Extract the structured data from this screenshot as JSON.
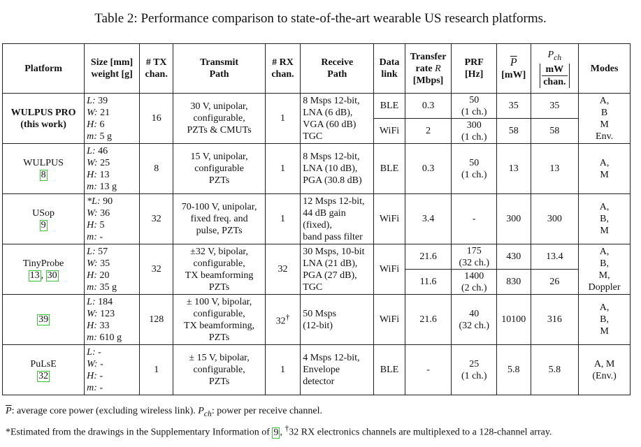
{
  "caption": "Table 2: Performance comparison to state-of-the-art wearable US research platforms.",
  "headers": {
    "platform": "Platform",
    "size_l1": "Size [mm]",
    "size_l2": "weight [g]",
    "tx_l1": "# TX",
    "tx_l2": "chan.",
    "transmit_l1": "Transmit",
    "transmit_l2": "Path",
    "rx_l1": "# RX",
    "rx_l2": "chan.",
    "receive_l1": "Receive",
    "receive_l2": "Path",
    "data_l1": "Data",
    "data_l2": "link",
    "transfer_l1": "Transfer",
    "transfer_l2": "rate",
    "transfer_var": "R",
    "transfer_l3": "[Mbps]",
    "prf_l1": "PRF",
    "prf_l2": "[Hz]",
    "p_sym": "P",
    "p_unit": "[mW]",
    "pch_sym": "P",
    "pch_sub": "ch",
    "pch_num": "mW",
    "pch_den": "chan.",
    "modes": "Modes"
  },
  "rows": {
    "wulpus_pro": {
      "name_l1": "WULPUS PRO",
      "name_l2": "(this work)",
      "size": [
        [
          "L:",
          " 39"
        ],
        [
          "W:",
          " 21"
        ],
        [
          "H:",
          " 6"
        ],
        [
          "m:",
          " 5 g"
        ]
      ],
      "tx": "16",
      "transmit": [
        "30 V, unipolar,",
        "configurable,",
        "PZTs & CMUTs"
      ],
      "rx": "1",
      "receive": [
        "8 Msps 12-bit,",
        "LNA (6 dB),",
        "VGA (60 dB)",
        "TGC"
      ],
      "sub": [
        {
          "link": "BLE",
          "rate": "0.3",
          "prf": "50",
          "prf2": "(1 ch.)",
          "p": "35",
          "pch": "35"
        },
        {
          "link": "WiFi",
          "rate": "2",
          "prf": "300",
          "prf2": "(1 ch.)",
          "p": "58",
          "pch": "58"
        }
      ],
      "modes": [
        "A,",
        "B",
        "M",
        "Env."
      ]
    },
    "wulpus": {
      "name": "WULPUS",
      "ref": "8",
      "size": [
        [
          "L:",
          " 46"
        ],
        [
          "W:",
          " 25"
        ],
        [
          "H:",
          " 13"
        ],
        [
          "m:",
          " 13 g"
        ]
      ],
      "tx": "8",
      "transmit": [
        "15 V, unipolar,",
        "configurable",
        "PZTs"
      ],
      "rx": "1",
      "receive": [
        "8 Msps 12-bit,",
        "LNA (10 dB),",
        "PGA (30.8 dB)"
      ],
      "link": "BLE",
      "rate": "0.3",
      "prf": "50",
      "prf2": "(1 ch.)",
      "p": "13",
      "pch": "13",
      "modes": [
        "A,",
        "M"
      ]
    },
    "usop": {
      "name": "USop",
      "ref": "9",
      "size": [
        [
          "*L:",
          " 90"
        ],
        [
          "W:",
          " 36"
        ],
        [
          "H:",
          " 5"
        ],
        [
          "m:",
          " -"
        ]
      ],
      "tx": "32",
      "transmit": [
        "70-100 V, unipolar,",
        "fixed freq. and",
        "pulse, PZTs"
      ],
      "rx": "1",
      "receive": [
        "12 Msps 12-bit,",
        "44 dB gain",
        "(fixed),",
        "band pass filter"
      ],
      "link": "WiFi",
      "rate": "3.4",
      "prf": "-",
      "p": "300",
      "pch": "300",
      "modes": [
        "A,",
        "B,",
        "M"
      ]
    },
    "tinyprobe": {
      "name": "TinyProbe",
      "ref1": "13",
      "sep": ", ",
      "ref2": "30",
      "size": [
        [
          "L:",
          " 57"
        ],
        [
          "W:",
          " 35"
        ],
        [
          "H:",
          " 20"
        ],
        [
          "m:",
          " 35 g"
        ]
      ],
      "tx": "32",
      "transmit": [
        "±32 V, bipolar,",
        "configurable,",
        "TX beamforming",
        "PZTs"
      ],
      "rx": "32",
      "receive": [
        "30 Msps, 10-bit",
        "LNA (21 dB),",
        "PGA (27 dB),",
        "TGC"
      ],
      "link": "WiFi",
      "sub": [
        {
          "rate": "21.6",
          "prf": "175",
          "prf2": "(32 ch.)",
          "p": "430",
          "pch": "13.4"
        },
        {
          "rate": "11.6",
          "prf": "1400",
          "prf2": "(2 ch.)",
          "p": "830",
          "pch": "26"
        }
      ],
      "modes": [
        "A,",
        "B,",
        "M,",
        "Doppler"
      ]
    },
    "ref39": {
      "ref": "39",
      "size": [
        [
          "L:",
          " 184"
        ],
        [
          "W:",
          " 123"
        ],
        [
          "H:",
          " 33"
        ],
        [
          "m:",
          " 610 g"
        ]
      ],
      "tx": "128",
      "transmit": [
        "± 100 V, bipolar,",
        "configurable,",
        "TX beamforming,",
        "PZTs"
      ],
      "rx": "32",
      "rx_sup": "†",
      "receive": [
        "50 Msps",
        "(12-bit)"
      ],
      "link": "WiFi",
      "rate": "21.6",
      "prf": "40",
      "prf2": "(32 ch.)",
      "p": "10100",
      "pch": "316",
      "modes": [
        "A,",
        "B,",
        "M"
      ]
    },
    "pulse": {
      "name": "PuLsE",
      "ref": "32",
      "size": [
        [
          "L:",
          " -"
        ],
        [
          "W:",
          " -"
        ],
        [
          "H:",
          " -"
        ],
        [
          "m:",
          " -"
        ]
      ],
      "tx": "1",
      "transmit": [
        "± 15 V, bipolar,",
        "configurable,",
        "PZTs"
      ],
      "rx": "1",
      "receive": [
        "4 Msps 12-bit,",
        "Envelope",
        "detector"
      ],
      "link": "BLE",
      "rate": "-",
      "prf": "25",
      "prf2": "(1 ch.)",
      "p": "5.8",
      "pch": "5.8",
      "modes": [
        "A, M",
        "(Env.)"
      ]
    }
  },
  "footnotes": {
    "f1_sym": "P",
    "f1_a": ": average core power (excluding wireless link). ",
    "f1_sym2": "P",
    "f1_sub2": "ch",
    "f1_b": ": power per receive channel.",
    "f2_a": "*Estimated from the drawings in the Supplementary Information of ",
    "f2_ref": "9",
    "f2_b": ", ",
    "f2_dag": "†",
    "f2_c": "32 RX electronics channels are multiplexed to a 128-channel array."
  }
}
